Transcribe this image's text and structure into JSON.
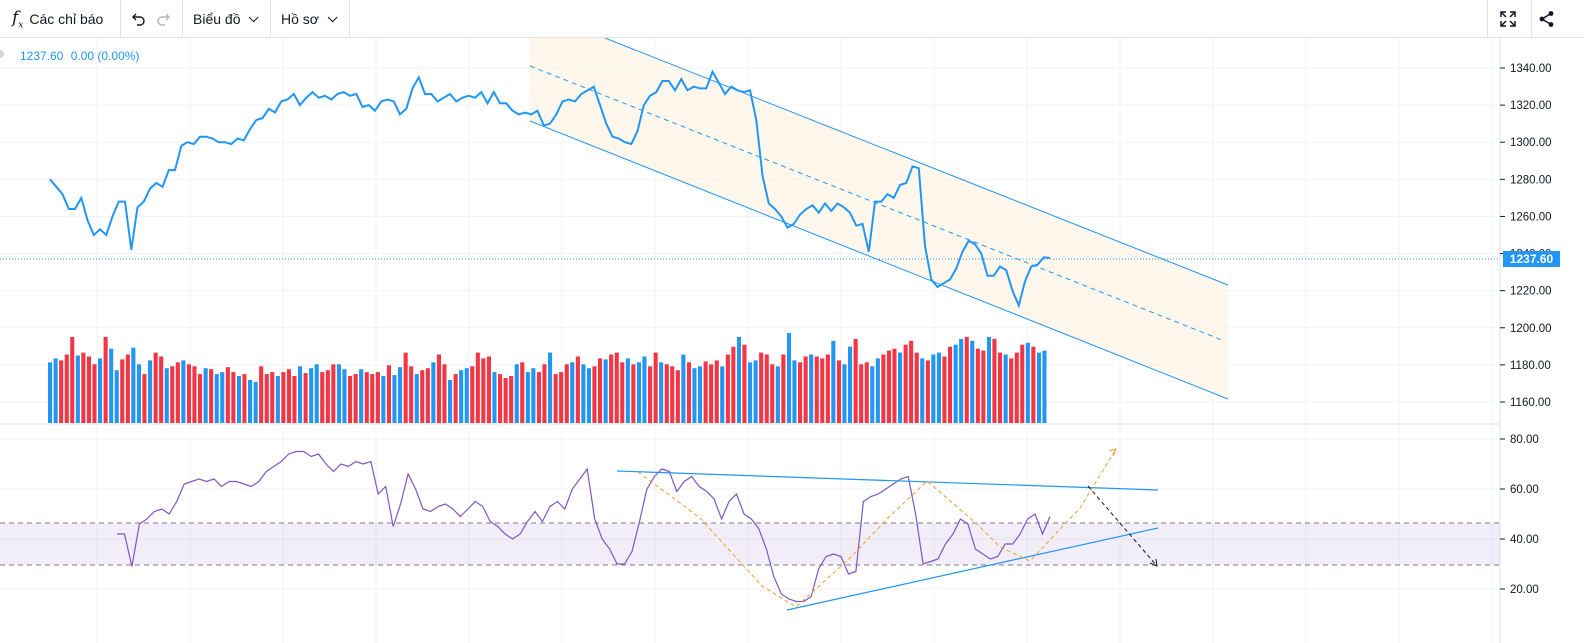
{
  "toolbar": {
    "indicators_label": "Các chỉ báo",
    "chart_label": "Biểu đồ",
    "profile_label": "Hồ sơ"
  },
  "legend": {
    "price": "1237.60",
    "change": "0.00 (0.00%)"
  },
  "chart_data": [
    {
      "type": "line",
      "name": "price",
      "color": "#2196f3",
      "last_value": "1237.60",
      "y_ticks": [
        "1340.00",
        "1320.00",
        "1300.00",
        "1280.00",
        "1260.00",
        "1240.00",
        "1220.00",
        "1200.00",
        "1180.00",
        "1160.00"
      ],
      "ylim": [
        1150,
        1355
      ],
      "values": [
        1280,
        1276,
        1272,
        1264,
        1264,
        1270,
        1258,
        1250,
        1253,
        1250,
        1260,
        1268,
        1268,
        1242,
        1265,
        1268,
        1275,
        1278,
        1276,
        1285,
        1285,
        1298,
        1300,
        1299,
        1303,
        1303,
        1302,
        1300,
        1300,
        1299,
        1302,
        1301,
        1307,
        1312,
        1313,
        1318,
        1316,
        1322,
        1323,
        1326,
        1320,
        1324,
        1327,
        1324,
        1325,
        1323,
        1326,
        1327,
        1325,
        1326,
        1319,
        1320,
        1317,
        1322,
        1323,
        1322,
        1315,
        1318,
        1329,
        1335,
        1326,
        1326,
        1322,
        1324,
        1326,
        1322,
        1324,
        1325,
        1324,
        1327,
        1321,
        1327,
        1321,
        1321,
        1317,
        1315,
        1316,
        1315,
        1317,
        1309,
        1310,
        1315,
        1322,
        1323,
        1322,
        1326,
        1328,
        1330,
        1320,
        1310,
        1303,
        1302,
        1300,
        1299,
        1306,
        1320,
        1325,
        1327,
        1333,
        1333,
        1328,
        1334,
        1328,
        1330,
        1329,
        1329,
        1338,
        1332,
        1326,
        1330,
        1328,
        1327,
        1328,
        1312,
        1282,
        1267,
        1264,
        1260,
        1254,
        1256,
        1261,
        1264,
        1266,
        1262,
        1267,
        1263,
        1267,
        1265,
        1262,
        1255,
        1256,
        1241,
        1268,
        1268,
        1272,
        1270,
        1277,
        1278,
        1287,
        1286,
        1244,
        1226,
        1222,
        1224,
        1226,
        1232,
        1241,
        1247,
        1245,
        1240,
        1228,
        1228,
        1233,
        1231,
        1220,
        1212,
        1225,
        1233,
        1234,
        1238,
        1237.6
      ]
    },
    {
      "type": "bar",
      "name": "volume",
      "up_color": "#2196f3",
      "down_color": "#f23645",
      "values": [
        62,
        66,
        64,
        70,
        88,
        69,
        72,
        68,
        60,
        66,
        88,
        76,
        54,
        65,
        70,
        77,
        60,
        50,
        64,
        72,
        68,
        56,
        58,
        62,
        64,
        60,
        58,
        50,
        56,
        55,
        50,
        52,
        57,
        52,
        48,
        50,
        44,
        42,
        58,
        50,
        52,
        48,
        52,
        55,
        48,
        58,
        51,
        56,
        60,
        52,
        54,
        60,
        60,
        55,
        48,
        50,
        55,
        52,
        50,
        52,
        48,
        59,
        49,
        57,
        72,
        58,
        50,
        54,
        56,
        62,
        70,
        60,
        44,
        50,
        54,
        56,
        58,
        72,
        66,
        68,
        52,
        50,
        46,
        48,
        60,
        62,
        52,
        56,
        52,
        60,
        72,
        50,
        52,
        60,
        62,
        68,
        60,
        56,
        58,
        66,
        65,
        70,
        72,
        62,
        66,
        60,
        62,
        68,
        58,
        72,
        62,
        60,
        58,
        54,
        70,
        62,
        56,
        58,
        63,
        60,
        64,
        58,
        70,
        78,
        88,
        80,
        62,
        64,
        72,
        70,
        60,
        58,
        70,
        92,
        64,
        62,
        68,
        70,
        68,
        66,
        70,
        84,
        64,
        60,
        78,
        86,
        60,
        62,
        58,
        66,
        70,
        74,
        76,
        72,
        80,
        84,
        72,
        66,
        64,
        70,
        72,
        68,
        78,
        80,
        86,
        88,
        84,
        76,
        74,
        88,
        86,
        72,
        70,
        66,
        72,
        80,
        82,
        78,
        72,
        74
      ],
      "directions": "uuddduddduduudduududdudduddduduudduduuddduddduduuddduudduddduduudduddudduduudddduddduduudduddduduudduddduduudduddduduudddudduduuddduduudduddduduuddd"
    },
    {
      "type": "line",
      "name": "rsi",
      "color": "#7e57c2",
      "y_ticks": [
        "80.00",
        "60.00",
        "40.00",
        "20.00"
      ],
      "ylim": [
        12,
        83
      ],
      "upper_band": 47,
      "lower_band": 30,
      "values": [
        42,
        42,
        29,
        46,
        48,
        51,
        52,
        50,
        55,
        62,
        63,
        64,
        63,
        64,
        61,
        63,
        63,
        62,
        61,
        63,
        67,
        69,
        71,
        74,
        75,
        75,
        73,
        74,
        70,
        67,
        70,
        69,
        71,
        70,
        71,
        58,
        61,
        45,
        54,
        66,
        60,
        52,
        51,
        53,
        54,
        52,
        49,
        52,
        55,
        53,
        47,
        45,
        42,
        40,
        42,
        47,
        51,
        47,
        53,
        55,
        52,
        60,
        64,
        68,
        48,
        40,
        36,
        30,
        30,
        35,
        47,
        60,
        65,
        68,
        67,
        59,
        63,
        65,
        61,
        59,
        56,
        48,
        55,
        58,
        50,
        48,
        44,
        36,
        25,
        18,
        16,
        15,
        15,
        17,
        28,
        33,
        34,
        33,
        26,
        27,
        55,
        57,
        58,
        60,
        62,
        64,
        65,
        50,
        30,
        31,
        32,
        38,
        42,
        48,
        46,
        36,
        34,
        32,
        33,
        38,
        38,
        42,
        48,
        50,
        42,
        49
      ]
    }
  ]
}
